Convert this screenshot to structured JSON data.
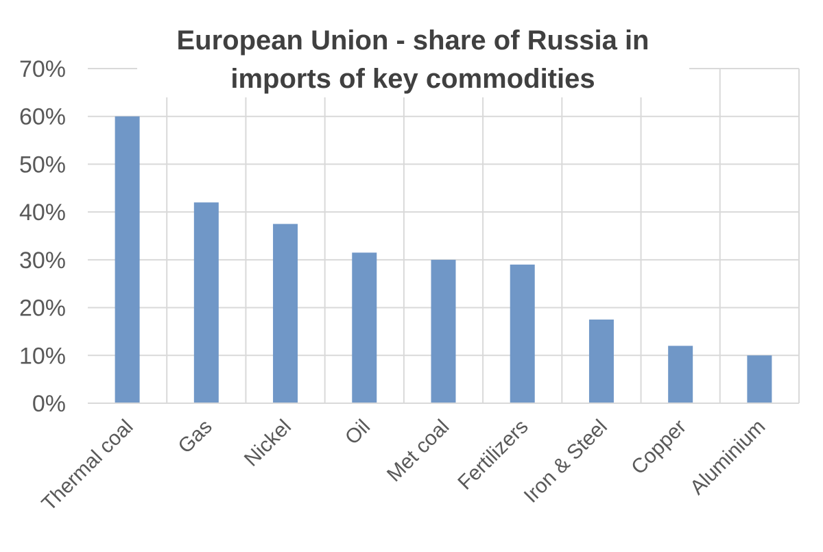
{
  "chart_data": {
    "type": "bar",
    "title_lines": [
      "European Union - share of Russia  in",
      "imports of key commodities"
    ],
    "categories": [
      "Thermal coal",
      "Gas",
      "Nickel",
      "Oil",
      "Met coal",
      "Fertilizers",
      "Iron & Steel",
      "Copper",
      "Aluminium"
    ],
    "values": [
      0.6,
      0.42,
      0.375,
      0.315,
      0.3,
      0.29,
      0.175,
      0.12,
      0.1
    ],
    "ylim": [
      0,
      0.7
    ],
    "yticks": [
      0,
      0.1,
      0.2,
      0.3,
      0.4,
      0.5,
      0.6,
      0.7
    ],
    "ytick_labels": [
      "0%",
      "10%",
      "20%",
      "30%",
      "40%",
      "50%",
      "60%",
      "70%"
    ],
    "grid": true,
    "bar_color": "#7097c7",
    "grid_color": "#d9d9d9",
    "axis_text_color": "#595959",
    "title_color": "#404040"
  }
}
